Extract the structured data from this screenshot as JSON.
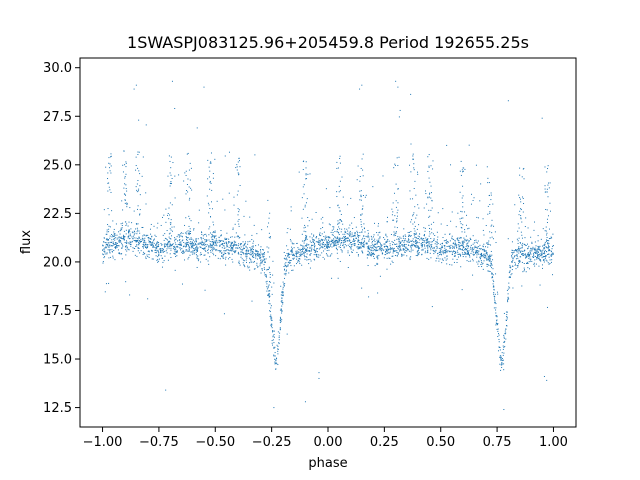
{
  "chart_data": {
    "type": "scatter",
    "title": "1SWASPJ083125.96+205459.8 Period 192655.25s",
    "xlabel": "phase",
    "ylabel": "flux",
    "xlim": [
      -1.1,
      1.1
    ],
    "ylim": [
      11.5,
      30.5
    ],
    "xticks": [
      -1.0,
      -0.75,
      -0.5,
      -0.25,
      0.0,
      0.25,
      0.5,
      0.75,
      1.0
    ],
    "xtick_labels": [
      "−1.00",
      "−0.75",
      "−0.50",
      "−0.25",
      "0.00",
      "0.25",
      "0.50",
      "0.75",
      "1.00"
    ],
    "yticks": [
      12.5,
      15.0,
      17.5,
      20.0,
      22.5,
      25.0,
      27.5,
      30.0
    ],
    "ytick_labels": [
      "12.5",
      "15.0",
      "17.5",
      "20.0",
      "22.5",
      "25.0",
      "27.5",
      "30.0"
    ],
    "grid": false,
    "point_color": "#1f77b4",
    "series": [
      {
        "description_of_shape": "phase-folded light curve, baseline flux ~20.5 with eclipses reaching ~14.5 at phases -0.23 and 0.77, scattered outliers up to ~29.5",
        "x": [
          -1.0,
          -0.98,
          -0.96,
          -0.94,
          -0.92,
          -0.9,
          -0.88,
          -0.86,
          -0.84,
          -0.82,
          -0.8,
          -0.78,
          -0.76,
          -0.74,
          -0.72,
          -0.7,
          -0.68,
          -0.66,
          -0.64,
          -0.62,
          -0.6,
          -0.58,
          -0.56,
          -0.54,
          -0.52,
          -0.5,
          -0.48,
          -0.46,
          -0.44,
          -0.42,
          -0.4,
          -0.38,
          -0.36,
          -0.34,
          -0.32,
          -0.3,
          -0.28,
          -0.27,
          -0.26,
          -0.25,
          -0.24,
          -0.23,
          -0.22,
          -0.21,
          -0.2,
          -0.19,
          -0.18,
          -0.16,
          -0.14,
          -0.12,
          -0.1,
          -0.08,
          -0.06,
          -0.04,
          -0.02,
          0.0,
          0.02,
          0.04,
          0.06,
          0.08,
          0.1,
          0.12,
          0.14,
          0.16,
          0.18,
          0.2,
          0.22,
          0.24,
          0.26,
          0.28,
          0.3,
          0.32,
          0.34,
          0.36,
          0.38,
          0.4,
          0.42,
          0.44,
          0.46,
          0.48,
          0.5,
          0.52,
          0.54,
          0.56,
          0.58,
          0.6,
          0.62,
          0.64,
          0.66,
          0.68,
          0.7,
          0.72,
          0.73,
          0.74,
          0.75,
          0.76,
          0.77,
          0.78,
          0.79,
          0.8,
          0.81,
          0.82,
          0.84,
          0.86,
          0.88,
          0.9,
          0.92,
          0.94,
          0.96,
          0.98,
          1.0
        ],
        "y": [
          20.6,
          20.9,
          21.0,
          20.9,
          21.1,
          21.0,
          21.2,
          21.1,
          21.0,
          20.9,
          20.8,
          20.9,
          20.7,
          20.6,
          20.8,
          20.9,
          20.8,
          20.9,
          21.0,
          20.9,
          20.8,
          20.7,
          20.9,
          20.8,
          20.9,
          21.0,
          20.8,
          20.7,
          20.6,
          20.8,
          20.7,
          20.5,
          20.6,
          20.4,
          20.3,
          20.2,
          20.0,
          19.0,
          18.0,
          16.8,
          15.6,
          14.8,
          15.5,
          17.0,
          18.6,
          19.8,
          20.3,
          20.4,
          20.3,
          20.5,
          20.6,
          20.7,
          20.8,
          20.9,
          21.0,
          21.0,
          21.1,
          21.0,
          21.1,
          21.2,
          21.0,
          21.1,
          21.0,
          20.9,
          20.8,
          20.7,
          20.6,
          20.7,
          20.8,
          20.7,
          20.9,
          20.8,
          20.9,
          21.0,
          20.9,
          20.8,
          20.9,
          21.0,
          20.9,
          20.8,
          20.7,
          20.6,
          20.8,
          20.7,
          20.9,
          20.8,
          20.7,
          20.6,
          20.5,
          20.4,
          20.3,
          20.1,
          19.2,
          18.0,
          16.8,
          15.6,
          14.8,
          15.6,
          17.0,
          18.6,
          19.7,
          20.2,
          20.3,
          20.4,
          20.3,
          20.4,
          20.5,
          20.4,
          20.5,
          20.4,
          20.4
        ]
      }
    ]
  }
}
